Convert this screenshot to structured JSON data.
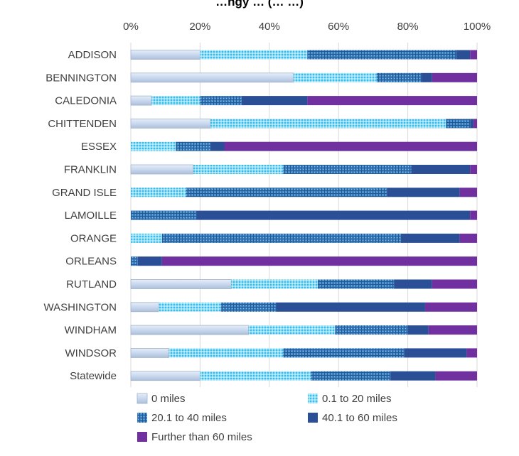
{
  "chart_data": {
    "type": "bar",
    "orientation": "horizontal",
    "stacked": true,
    "percent": true,
    "title": "…ngy … (… …)",
    "categories": [
      "ADDISON",
      "BENNINGTON",
      "CALEDONIA",
      "CHITTENDEN",
      "ESSEX",
      "FRANKLIN",
      "GRAND ISLE",
      "LAMOILLE",
      "ORANGE",
      "ORLEANS",
      "RUTLAND",
      "WASHINGTON",
      "WINDHAM",
      "WINDSOR",
      "Statewide"
    ],
    "series": [
      {
        "name": "0 miles",
        "color": "#c5d9f1",
        "pattern": "gradient",
        "values": [
          20,
          47,
          6,
          23,
          0,
          18,
          0,
          0,
          0,
          0,
          29,
          8,
          34,
          11,
          20
        ]
      },
      {
        "name": "0.1 to 20 miles",
        "color": "#4fc3e8",
        "pattern": "dots",
        "values": [
          31,
          24,
          14,
          68,
          13,
          26,
          16,
          0,
          9,
          0,
          25,
          18,
          25,
          33,
          32
        ]
      },
      {
        "name": "20.1 to 40 miles",
        "color": "#2e7fc0",
        "pattern": "grid",
        "values": [
          43,
          13,
          12,
          7,
          10,
          37,
          58,
          19,
          69,
          2,
          22,
          16,
          21,
          35,
          23
        ]
      },
      {
        "name": "40.1 to 60 miles",
        "color": "#2a4f96",
        "values": [
          4,
          3,
          19,
          1,
          4,
          17,
          21,
          79,
          17,
          7,
          11,
          43,
          6,
          18,
          13
        ]
      },
      {
        "name": "Further than 60 miles",
        "color": "#7030a0",
        "values": [
          2,
          13,
          49,
          1,
          73,
          2,
          5,
          2,
          5,
          91,
          13,
          15,
          14,
          3,
          12
        ]
      }
    ],
    "xlim": [
      0,
      100
    ],
    "x_ticks": [
      "0%",
      "20%",
      "40%",
      "60%",
      "80%",
      "100%"
    ],
    "grid": "vertical",
    "xaxis_position": "top",
    "legend_position": "bottom"
  }
}
